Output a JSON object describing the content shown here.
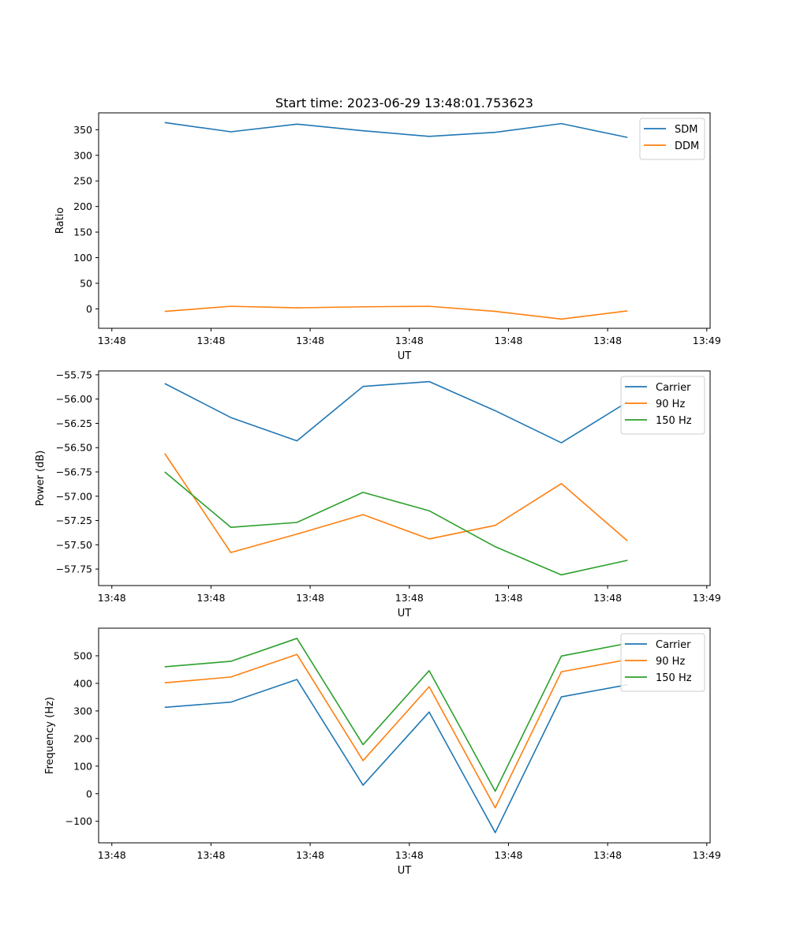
{
  "figure": {
    "title": "Start time: 2023-06-29 13:48:01.753623"
  },
  "chart_data": [
    {
      "type": "line",
      "xlabel": "UT",
      "ylabel": "Ratio",
      "xlim": [
        0,
        9.25
      ],
      "ylim": [
        -38,
        383
      ],
      "xticks": [
        0.2,
        1.7,
        3.2,
        4.7,
        6.2,
        7.7,
        9.2
      ],
      "xtick_labels": [
        "13:48",
        "13:48",
        "13:48",
        "13:48",
        "13:48",
        "13:48",
        "13:49"
      ],
      "yticks": [
        0,
        50,
        100,
        150,
        200,
        250,
        300,
        350
      ],
      "ytick_labels": [
        "0",
        "50",
        "100",
        "150",
        "200",
        "250",
        "300",
        "350"
      ],
      "legend": "top-right",
      "grid": false,
      "x": [
        1,
        2,
        3,
        4,
        5,
        6,
        7,
        8
      ],
      "series": [
        {
          "name": "SDM",
          "color": "#1f77b4",
          "values": [
            364,
            346,
            361,
            348,
            337,
            345,
            362,
            335
          ]
        },
        {
          "name": "DDM",
          "color": "#ff7f0e",
          "values": [
            -5,
            5,
            2,
            4,
            5,
            -5,
            -20,
            -4
          ]
        }
      ]
    },
    {
      "type": "line",
      "xlabel": "UT",
      "ylabel": "Power (dB)",
      "xlim": [
        0,
        9.25
      ],
      "ylim": [
        -57.92,
        -55.71
      ],
      "xticks": [
        0.2,
        1.7,
        3.2,
        4.7,
        6.2,
        7.7,
        9.2
      ],
      "xtick_labels": [
        "13:48",
        "13:48",
        "13:48",
        "13:48",
        "13:48",
        "13:48",
        "13:49"
      ],
      "yticks": [
        -57.75,
        -57.5,
        -57.25,
        -57.0,
        -56.75,
        -56.5,
        -56.25,
        -56.0,
        -55.75
      ],
      "ytick_labels": [
        "−57.75",
        "−57.50",
        "−57.25",
        "−57.00",
        "−56.75",
        "−56.50",
        "−56.25",
        "−56.00",
        "−55.75"
      ],
      "legend": "top-right",
      "grid": false,
      "x": [
        1,
        2,
        3,
        4,
        5,
        6,
        7,
        8
      ],
      "series": [
        {
          "name": "Carrier",
          "color": "#1f77b4",
          "values": [
            -55.84,
            -56.19,
            -56.43,
            -55.87,
            -55.82,
            -56.12,
            -56.45,
            -56.03
          ]
        },
        {
          "name": "90 Hz",
          "color": "#ff7f0e",
          "values": [
            -56.56,
            -57.58,
            -57.39,
            -57.19,
            -57.44,
            -57.3,
            -56.87,
            -57.46
          ]
        },
        {
          "name": "150 Hz",
          "color": "#2ca02c",
          "values": [
            -56.75,
            -57.32,
            -57.27,
            -56.96,
            -57.15,
            -57.52,
            -57.81,
            -57.66
          ]
        }
      ]
    },
    {
      "type": "line",
      "xlabel": "UT",
      "ylabel": "Frequency (Hz)",
      "xlim": [
        0,
        9.25
      ],
      "ylim": [
        -178,
        600
      ],
      "xticks": [
        0.2,
        1.7,
        3.2,
        4.7,
        6.2,
        7.7,
        9.2
      ],
      "xtick_labels": [
        "13:48",
        "13:48",
        "13:48",
        "13:48",
        "13:48",
        "13:48",
        "13:49"
      ],
      "yticks": [
        -100,
        0,
        100,
        200,
        300,
        400,
        500
      ],
      "ytick_labels": [
        "−100",
        "0",
        "100",
        "200",
        "300",
        "400",
        "500"
      ],
      "legend": "top-right",
      "grid": false,
      "x": [
        1,
        2,
        3,
        4,
        5,
        6,
        7,
        8
      ],
      "series": [
        {
          "name": "Carrier",
          "color": "#1f77b4",
          "values": [
            313,
            332,
            414,
            31,
            296,
            -141,
            351,
            395
          ]
        },
        {
          "name": "90 Hz",
          "color": "#ff7f0e",
          "values": [
            402,
            423,
            505,
            120,
            388,
            -51,
            442,
            486
          ]
        },
        {
          "name": "150 Hz",
          "color": "#2ca02c",
          "values": [
            460,
            480,
            563,
            178,
            446,
            9,
            499,
            545
          ]
        }
      ]
    }
  ]
}
